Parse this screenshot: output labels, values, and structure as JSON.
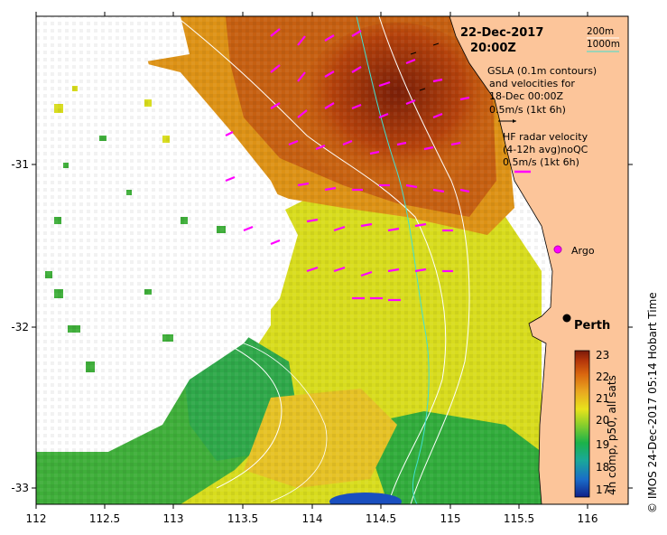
{
  "date": "22-Dec-2017",
  "time": "20:00Z",
  "depth_legend": {
    "d200": "200m",
    "d1000": "1000m"
  },
  "gsla": {
    "line1": "GSLA (0.1m contours)",
    "line2": "and velocities for",
    "line3": "18-Dec 00:00Z",
    "line4": "0.5m/s (1kt 6h)"
  },
  "hf": {
    "line1": "HF radar velocity",
    "line2": "(4-12h avg)noQC",
    "line3": "0.5m/s (1kt 6h)"
  },
  "argo_label": "Argo",
  "perth_label": "Perth",
  "colorbar": {
    "ticks": [
      "23",
      "22",
      "21",
      "20",
      "19",
      "18",
      "17"
    ],
    "label": "4h comp, p50, all sats",
    "colors": [
      "#7a1a0a",
      "#b5360a",
      "#d9660f",
      "#e9a820",
      "#e8e21c",
      "#8fd02a",
      "#1bb24a",
      "#1aa89a",
      "#1a6cc8",
      "#10208a"
    ]
  },
  "footer_vertical": "© IMOS 24-Dec-2017 05:14 Hobart Time",
  "x_ticks": [
    "112",
    "112.5",
    "113",
    "113.5",
    "114",
    "114.5",
    "115",
    "115.5",
    "116"
  ],
  "y_ticks": [
    "-31",
    "-32",
    "-33"
  ],
  "colors": {
    "land": "#fcc59a",
    "sst_warm": "#c0500d",
    "sst_hot": "#8c2a0c",
    "sst_mid": "#e8b020",
    "sst_yellow": "#e4e21e",
    "sst_green": "#46b83a",
    "gsla_vector": "#ff00ff",
    "isobath_200": "#ffffff",
    "isobath_1000": "#40e0d0"
  }
}
